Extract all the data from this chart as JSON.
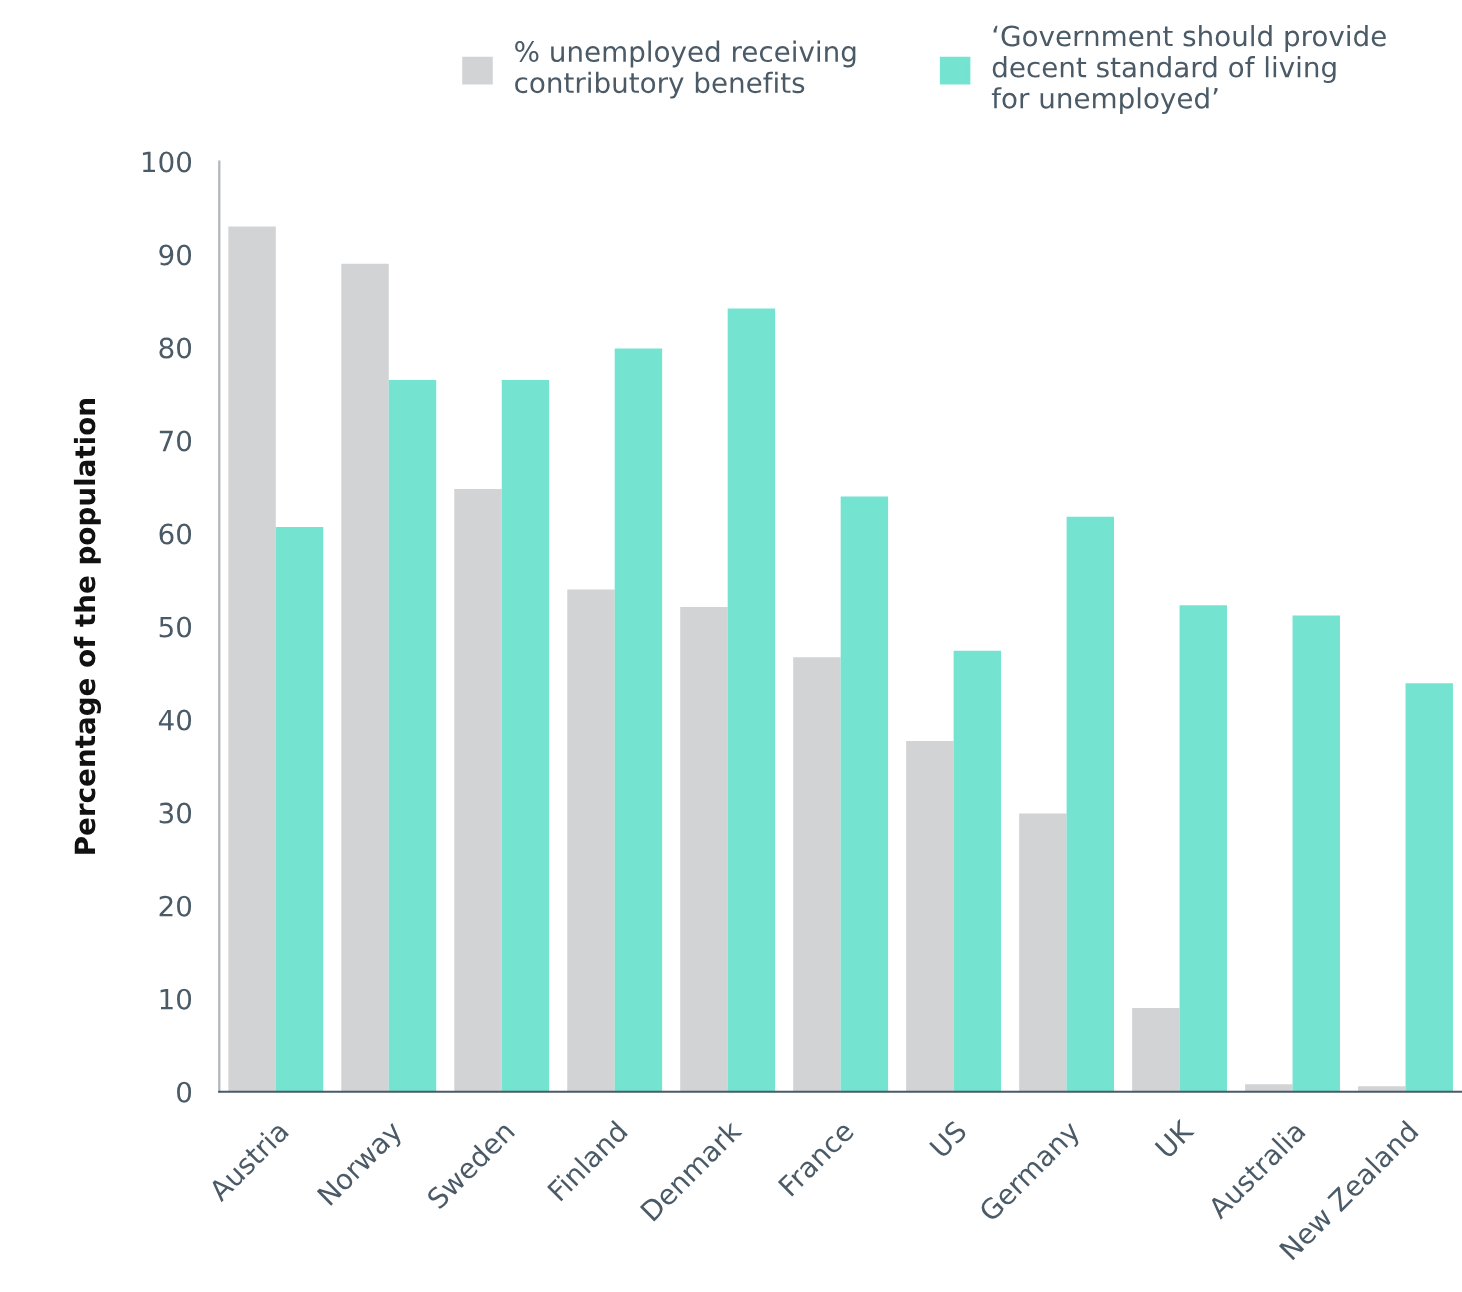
{
  "chart_data": {
    "type": "bar",
    "ylabel": "Percentage of the population",
    "categories": [
      "Austria",
      "Norway",
      "Sweden",
      "Finland",
      "Denmark",
      "France",
      "US",
      "Germany",
      "UK",
      "Australia",
      "New Zealand"
    ],
    "series": [
      {
        "name": "% unemployed receiving\ncontributory benefits",
        "color": "#d2d3d5",
        "values": [
          93,
          89,
          64.8,
          54,
          52.1,
          46.7,
          37.7,
          29.9,
          9,
          0.8,
          0.6
        ]
      },
      {
        "name": "‘Government should provide\ndecent standard of living\nfor unemployed’",
        "color": "#74e4d1",
        "values": [
          60.7,
          76.5,
          76.5,
          79.9,
          84.2,
          64,
          47.4,
          61.8,
          52.3,
          51.2,
          43.9
        ]
      }
    ],
    "ylim": [
      0,
      100
    ],
    "yticks": [
      0,
      10,
      20,
      30,
      40,
      50,
      60,
      70,
      80,
      90,
      100
    ],
    "grid": false,
    "legend": "top"
  }
}
